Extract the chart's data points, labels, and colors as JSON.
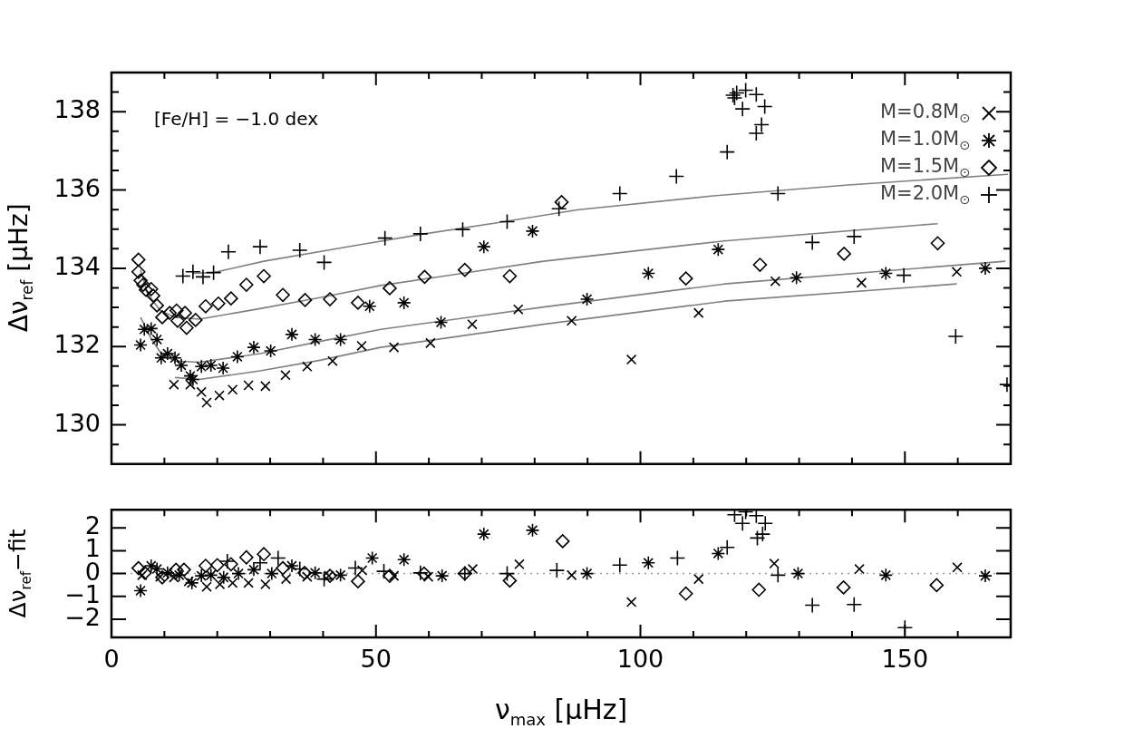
{
  "chart_data": [
    {
      "type": "scatter",
      "ylabel": "Δν$_{ref}$ [μHz]",
      "annotations": [
        "[Fe/H] = −1.0 dex"
      ],
      "legend": "top right",
      "tick_labels": "y",
      "xlim": [
        0,
        170
      ],
      "xticks": [
        0,
        {
          "value": 10,
          "label": null
        },
        {
          "value": 20,
          "label": null
        },
        {
          "value": 30,
          "label": null
        },
        {
          "value": 40,
          "label": null
        },
        50,
        {
          "value": 60,
          "label": null
        },
        {
          "value": 70,
          "label": null
        },
        {
          "value": 80,
          "label": null
        },
        {
          "value": 90,
          "label": null
        },
        100,
        {
          "value": 110,
          "label": null
        },
        {
          "value": 120,
          "label": null
        },
        {
          "value": 130,
          "label": null
        },
        {
          "value": 140,
          "label": null
        },
        150,
        {
          "value": 160,
          "label": null
        }
      ],
      "ylim": [
        129,
        139
      ],
      "yticks": [
        {
          "value": 129.5,
          "label": null
        },
        130,
        {
          "value": 130.5,
          "label": null
        },
        {
          "value": 131,
          "label": null
        },
        {
          "value": 131.5,
          "label": null
        },
        132,
        {
          "value": 132.5,
          "label": null
        },
        {
          "value": 133,
          "label": null
        },
        {
          "value": 133.5,
          "label": null
        },
        134,
        {
          "value": 134.5,
          "label": null
        },
        {
          "value": 135,
          "label": null
        },
        {
          "value": 135.5,
          "label": null
        },
        136,
        {
          "value": 136.5,
          "label": null
        },
        {
          "value": 137,
          "label": null
        },
        {
          "value": 137.5,
          "label": null
        },
        138,
        {
          "value": 138.5,
          "label": null
        }
      ],
      "series": [
        {
          "name": "M=0.8M$_{⊙}$",
          "type": "scatter",
          "marker": "cross",
          "color": "#000000",
          "x": [
            11.8,
            14.9,
            17.0,
            18.0,
            20.4,
            22.9,
            25.9,
            29.1,
            32.9,
            37.0,
            41.8,
            47.3,
            53.4,
            60.3,
            68.2,
            76.9,
            87.0,
            98.3,
            111.0,
            125.5,
            141.8,
            159.8
          ],
          "values": [
            131.03,
            131.03,
            130.84,
            130.57,
            130.75,
            130.9,
            131.01,
            130.99,
            131.27,
            131.49,
            131.63,
            132.02,
            131.98,
            132.09,
            132.57,
            132.95,
            132.66,
            131.67,
            132.86,
            133.67,
            133.63,
            133.91
          ]
        },
        {
          "name": "M=1.0M$_{⊙}$",
          "type": "scatter",
          "color": "#000000",
          "x": [
            5.5,
            6.2,
            7.5,
            8.6,
            9.4,
            10.6,
            12.0,
            13.2,
            14.9,
            15.4,
            17.0,
            18.8,
            21.1,
            23.8,
            26.9,
            30.1,
            34.1,
            38.5,
            43.3,
            48.8,
            55.3,
            62.3,
            70.4,
            79.6,
            89.9,
            101.5,
            114.7,
            129.5,
            146.4,
            165.2
          ],
          "values": [
            132.04,
            132.44,
            132.46,
            132.18,
            131.71,
            131.82,
            131.71,
            131.52,
            131.25,
            131.16,
            131.49,
            131.52,
            131.45,
            131.74,
            131.98,
            131.89,
            132.31,
            132.18,
            132.18,
            133.03,
            133.12,
            132.62,
            134.55,
            134.95,
            133.21,
            133.87,
            134.48,
            133.76,
            133.87,
            134.0
          ]
        },
        {
          "name": "M=1.5M$_{⊙}$",
          "type": "scatter",
          "marker": "diamond",
          "color": "#000000",
          "x": [
            5.1,
            5.1,
            5.5,
            6.0,
            6.5,
            7.5,
            7.9,
            8.6,
            9.6,
            11.0,
            12.3,
            12.5,
            13.9,
            14.2,
            15.9,
            17.8,
            20.2,
            22.6,
            25.5,
            28.8,
            32.4,
            36.6,
            41.3,
            46.6,
            52.6,
            59.2,
            66.8,
            75.3,
            85.1,
            108.6,
            122.6,
            138.5,
            156.2
          ],
          "values": [
            134.22,
            133.91,
            133.69,
            133.58,
            133.45,
            133.47,
            133.3,
            133.05,
            132.75,
            132.86,
            132.92,
            132.66,
            132.86,
            132.48,
            132.68,
            133.03,
            133.1,
            133.23,
            133.58,
            133.8,
            133.32,
            133.19,
            133.21,
            133.12,
            133.49,
            133.78,
            133.96,
            133.8,
            135.69,
            133.74,
            134.09,
            134.37,
            134.64
          ]
        },
        {
          "name": "M=2.0M$_{⊙}$",
          "type": "scatter",
          "marker": "plus",
          "color": "#000000",
          "x": [
            13.5,
            15.4,
            17.3,
            19.3,
            22.1,
            28.1,
            35.6,
            40.2,
            51.7,
            58.4,
            66.4,
            74.8,
            84.6,
            96.1,
            106.8,
            116.4,
            117.5,
            117.8,
            118.2,
            119.3,
            119.9,
            121.9,
            123.5,
            122.9,
            121.9,
            126.0,
            132.5,
            140.4,
            149.8,
            159.6,
            169.3
          ],
          "values": [
            133.8,
            133.91,
            133.78,
            133.89,
            134.42,
            134.55,
            134.46,
            134.15,
            134.77,
            134.88,
            134.99,
            135.19,
            135.52,
            135.91,
            136.35,
            136.97,
            138.42,
            138.35,
            138.48,
            138.07,
            138.55,
            138.44,
            138.13,
            137.67,
            137.45,
            135.91,
            134.66,
            134.81,
            133.82,
            132.26,
            131.03
          ]
        },
        {
          "type": "line",
          "marker": "none",
          "color": "#808080",
          "x": [
            5.5,
            7.5,
            9.4,
            12.0,
            16.6,
            28.1,
            39.4,
            50.9,
            81.7,
            115.9,
            169.0
          ],
          "values": [
            132.75,
            132.2,
            131.82,
            131.63,
            131.6,
            131.82,
            132.13,
            132.44,
            133.01,
            133.6,
            134.18
          ]
        },
        {
          "type": "line",
          "marker": "none",
          "color": "#808080",
          "x": [
            12.0,
            16.6,
            28.1,
            39.4,
            50.9,
            81.7,
            115.9,
            159.8
          ],
          "values": [
            131.21,
            131.16,
            131.38,
            131.65,
            131.98,
            132.57,
            133.16,
            133.6
          ]
        },
        {
          "type": "line",
          "marker": "none",
          "color": "#808080",
          "x": [
            5.5,
            6.8,
            9.2,
            12.0,
            16.6,
            28.1,
            39.4,
            50.9,
            81.7,
            115.9,
            156.2
          ],
          "values": [
            133.96,
            133.36,
            132.92,
            132.75,
            132.7,
            132.97,
            133.25,
            133.56,
            134.18,
            134.7,
            135.14
          ]
        },
        {
          "type": "line",
          "marker": "none",
          "color": "#808080",
          "x": [
            15.4,
            19.3,
            28.8,
            45.6,
            59.2,
            72.9,
            88.0,
            113.8,
            139.3,
            169.5
          ],
          "values": [
            133.87,
            133.89,
            134.18,
            134.57,
            134.88,
            135.16,
            135.49,
            135.85,
            136.13,
            136.4
          ]
        }
      ]
    },
    {
      "type": "scatter",
      "xlabel": "ν$_{max}$ [μHz]",
      "ylabel": "Δν$_{ref}$−fit",
      "xlim": [
        0,
        170
      ],
      "xticks": [
        0,
        {
          "value": 10,
          "label": null
        },
        {
          "value": 20,
          "label": null
        },
        {
          "value": 30,
          "label": null
        },
        {
          "value": 40,
          "label": null
        },
        50,
        {
          "value": 60,
          "label": null
        },
        {
          "value": 70,
          "label": null
        },
        {
          "value": 80,
          "label": null
        },
        {
          "value": 90,
          "label": null
        },
        100,
        {
          "value": 110,
          "label": null
        },
        {
          "value": 120,
          "label": null
        },
        {
          "value": 130,
          "label": null
        },
        {
          "value": 140,
          "label": null
        },
        150,
        {
          "value": 160,
          "label": null
        }
      ],
      "ylim": [
        -2.8,
        2.8
      ],
      "yticks": [
        {
          "value": -2,
          "label": "−2"
        },
        {
          "value": -1,
          "label": "−1"
        },
        0,
        1,
        2
      ],
      "ref_lines": [
        {
          "axis": "y",
          "value": 0,
          "color": "#999999",
          "line_style": "dotted"
        }
      ],
      "series": [
        {
          "type": "scatter",
          "marker": "cross",
          "color": "#000000",
          "x": [
            5.8,
            9.2,
            11.8,
            14.6,
            18.0,
            20.5,
            22.9,
            25.9,
            29.1,
            33.0,
            37.0,
            41.1,
            47.4,
            53.4,
            59.9,
            68.3,
            77.1,
            87.0,
            98.3,
            111.0,
            125.3,
            141.4,
            159.9
          ],
          "values": [
            -0.07,
            -0.14,
            -0.17,
            -0.34,
            -0.58,
            -0.47,
            -0.41,
            -0.41,
            -0.47,
            -0.24,
            -0.14,
            -0.1,
            0.14,
            -0.1,
            -0.14,
            0.2,
            0.41,
            -0.07,
            -1.25,
            -0.24,
            0.44,
            0.2,
            0.27
          ]
        },
        {
          "type": "scatter",
          "color": "#000000",
          "x": [
            5.5,
            7.5,
            8.6,
            10.6,
            12.8,
            15.2,
            17.0,
            18.8,
            21.2,
            24.0,
            26.9,
            30.3,
            34.1,
            38.5,
            43.3,
            49.3,
            55.3,
            62.5,
            70.4,
            79.6,
            89.9,
            101.5,
            114.7,
            129.8,
            146.4,
            165.2
          ],
          "values": [
            -0.75,
            0.34,
            0.2,
            0.03,
            -0.07,
            -0.41,
            -0.1,
            -0.07,
            -0.17,
            0.0,
            0.17,
            0.0,
            0.34,
            0.03,
            -0.07,
            0.68,
            0.61,
            -0.1,
            1.73,
            1.9,
            0.0,
            0.47,
            0.88,
            0.0,
            -0.07,
            -0.1
          ]
        },
        {
          "type": "scatter",
          "marker": "diamond",
          "color": "#000000",
          "x": [
            5.1,
            6.3,
            9.6,
            12.2,
            13.7,
            17.8,
            20.0,
            22.6,
            25.5,
            28.8,
            32.4,
            36.5,
            41.3,
            46.6,
            52.6,
            59.1,
            66.8,
            75.3,
            85.3,
            108.6,
            122.4,
            138.4,
            156.0
          ],
          "values": [
            0.24,
            0.03,
            -0.17,
            0.17,
            0.17,
            0.34,
            0.37,
            0.41,
            0.71,
            0.85,
            0.24,
            0.03,
            -0.1,
            -0.34,
            -0.1,
            0.0,
            0.0,
            -0.31,
            1.42,
            -0.88,
            -0.71,
            -0.61,
            -0.51
          ]
        },
        {
          "type": "scatter",
          "marker": "plus",
          "color": "#000000",
          "x": [
            21.9,
            28.1,
            31.5,
            35.6,
            40.2,
            46.1,
            51.5,
            58.4,
            66.8,
            74.8,
            84.2,
            96.1,
            107.0,
            116.4,
            117.8,
            119.9,
            119.3,
            121.9,
            123.6,
            123.1,
            122.1,
            126.0,
            132.5,
            140.4,
            150.0
          ],
          "values": [
            0.54,
            0.47,
            0.68,
            0.2,
            -0.24,
            0.24,
            0.1,
            0.03,
            0.0,
            0.0,
            0.14,
            0.37,
            0.68,
            1.15,
            2.58,
            2.71,
            2.2,
            2.54,
            2.2,
            1.73,
            1.56,
            -0.07,
            -1.39,
            -1.36,
            -2.37
          ]
        }
      ]
    }
  ]
}
